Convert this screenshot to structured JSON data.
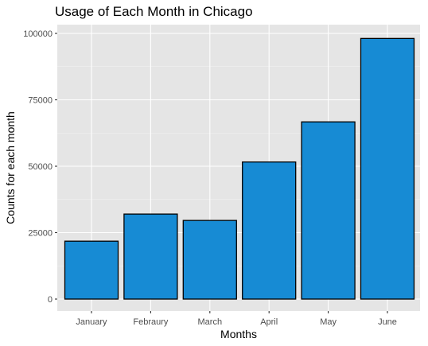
{
  "chart_data": {
    "type": "bar",
    "title": "Usage of Each Month in Chicago",
    "xlabel": "Months",
    "ylabel": "Counts for each month",
    "categories": [
      "January",
      "Febraury",
      "March",
      "April",
      "May",
      "June"
    ],
    "values": [
      21800,
      32000,
      29600,
      51600,
      66700,
      98100
    ],
    "ylim": [
      0,
      102000
    ],
    "yticks": [
      0,
      25000,
      50000,
      75000,
      100000
    ],
    "ytick_labels": [
      "0",
      "25000",
      "50000",
      "75000",
      "100000"
    ],
    "grid": true,
    "legend": "none",
    "colors": {
      "bar_fill": "#178bd4",
      "bar_stroke": "#000000",
      "panel_background": "#e5e5e5",
      "grid_major": "#ffffff",
      "grid_minor": "#f2f2f2"
    }
  }
}
